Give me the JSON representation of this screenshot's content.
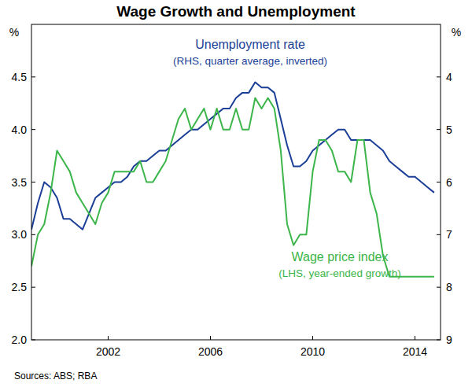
{
  "chart_data": {
    "type": "line",
    "title": "Wage Growth and Unemployment",
    "ylabel": "%",
    "y2label": "%",
    "source": "Sources:  ABS; RBA",
    "grid": false,
    "x": [
      1999,
      1999.25,
      1999.5,
      1999.75,
      2000,
      2000.25,
      2000.5,
      2000.75,
      2001,
      2001.25,
      2001.5,
      2001.75,
      2002,
      2002.25,
      2002.5,
      2002.75,
      2003,
      2003.25,
      2003.5,
      2003.75,
      2004,
      2004.25,
      2004.5,
      2004.75,
      2005,
      2005.25,
      2005.5,
      2005.75,
      2006,
      2006.25,
      2006.5,
      2006.75,
      2007,
      2007.25,
      2007.5,
      2007.75,
      2008,
      2008.25,
      2008.5,
      2008.75,
      2009,
      2009.25,
      2009.5,
      2009.75,
      2010,
      2010.25,
      2010.5,
      2010.75,
      2011,
      2011.25,
      2011.5,
      2011.75,
      2012,
      2012.25,
      2012.5,
      2012.75,
      2013,
      2013.25,
      2013.5,
      2013.75,
      2014,
      2014.25,
      2014.5,
      2014.75
    ],
    "xlim": [
      1999,
      2015
    ],
    "xticks": [
      2002,
      2006,
      2010,
      2014
    ],
    "ylim": [
      2,
      5
    ],
    "yticks": [
      {
        "value": 2,
        "label": "2.0"
      },
      2.5,
      {
        "value": 3,
        "label": "3.0"
      },
      3.5,
      {
        "value": 4,
        "label": "4.0"
      },
      4.5
    ],
    "y2lim": [
      9,
      3
    ],
    "y2ticks": [
      9,
      8,
      7,
      6,
      5,
      4
    ],
    "series": [
      {
        "name": "Unemployment rate",
        "color": "#1b3f97",
        "axis": "y2",
        "values": [
          6.9,
          6.4,
          6.0,
          6.1,
          6.3,
          6.7,
          6.7,
          6.8,
          6.9,
          6.6,
          6.3,
          6.2,
          6.1,
          6.0,
          6.0,
          5.9,
          5.7,
          5.6,
          5.6,
          5.5,
          5.4,
          5.4,
          5.3,
          5.2,
          5.1,
          5.0,
          5.0,
          4.9,
          4.8,
          4.7,
          4.6,
          4.6,
          4.4,
          4.3,
          4.3,
          4.1,
          4.2,
          4.2,
          4.3,
          4.8,
          5.3,
          5.7,
          5.7,
          5.6,
          5.4,
          5.3,
          5.2,
          5.1,
          5.0,
          5.0,
          5.2,
          5.2,
          5.2,
          5.2,
          5.3,
          5.4,
          5.6,
          5.7,
          5.8,
          5.9,
          5.9,
          6.0,
          6.1,
          6.2
        ]
      },
      {
        "name": "Wage price index",
        "color": "#3cb54a",
        "values": [
          2.7,
          3.0,
          3.1,
          3.4,
          3.8,
          3.7,
          3.6,
          3.4,
          3.3,
          3.2,
          3.1,
          3.3,
          3.4,
          3.6,
          3.6,
          3.6,
          3.6,
          3.7,
          3.5,
          3.5,
          3.6,
          3.7,
          3.9,
          4.1,
          4.2,
          4.0,
          4.1,
          4.2,
          4.0,
          4.2,
          4.0,
          4.0,
          4.2,
          4.0,
          4.0,
          4.3,
          4.2,
          4.3,
          4.2,
          3.8,
          3.1,
          2.9,
          3.0,
          3.0,
          3.6,
          3.9,
          3.9,
          3.8,
          3.6,
          3.6,
          3.5,
          3.9,
          3.9,
          3.4,
          3.2,
          2.8,
          2.6,
          2.6,
          2.6,
          2.6,
          2.6,
          2.6,
          2.6,
          2.6
        ]
      }
    ],
    "annotations": [
      "(RHS, quarter average, inverted)",
      "(LHS, year-ended growth)"
    ]
  }
}
